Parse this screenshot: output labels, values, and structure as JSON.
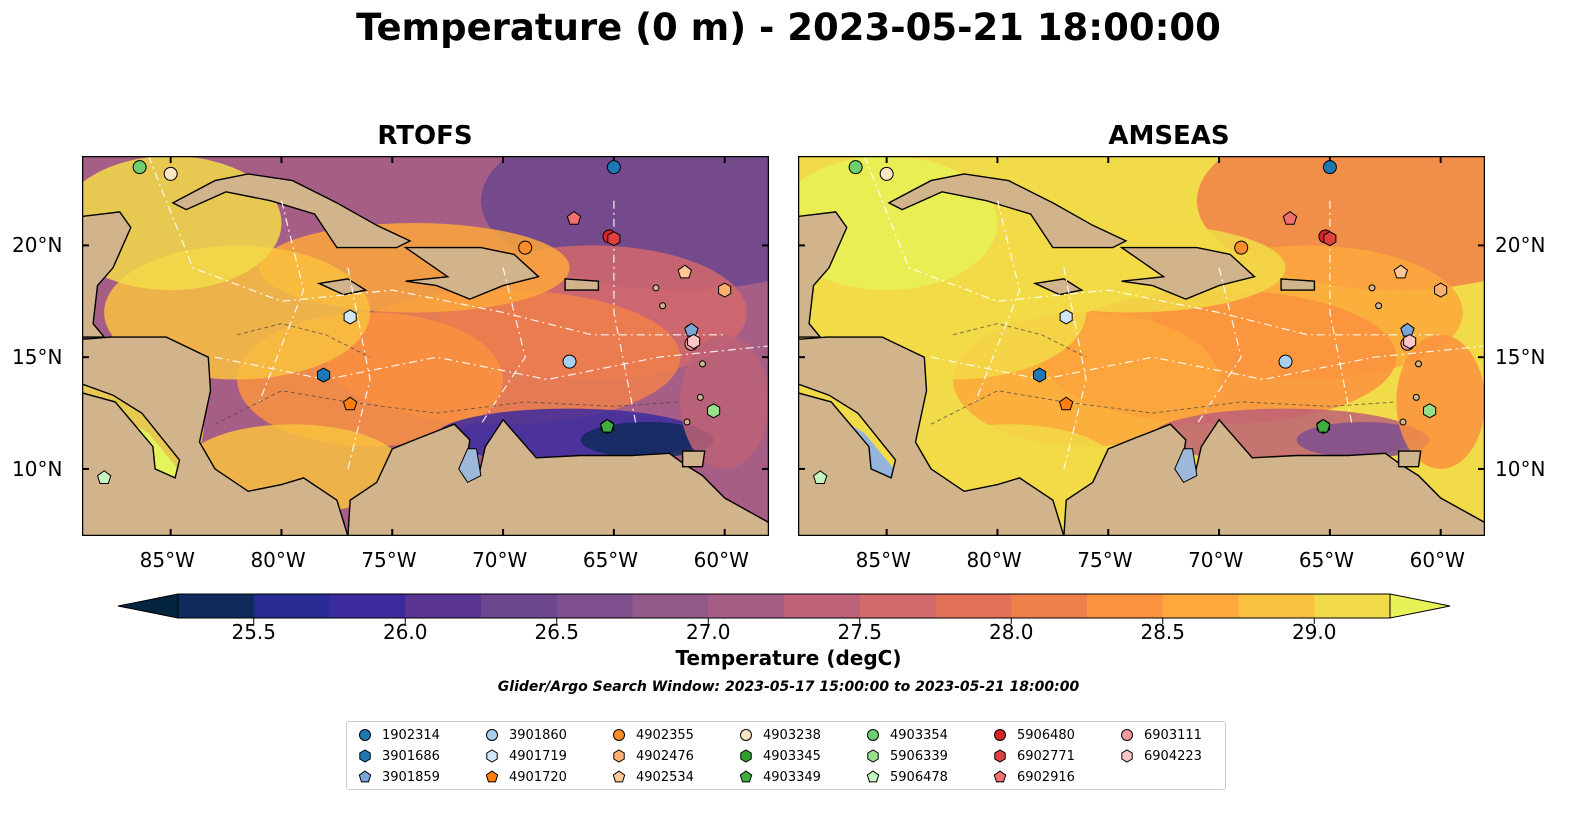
{
  "title": "Temperature (0 m) - 2023-05-21 18:00:00",
  "panels": [
    {
      "name": "RTOFS",
      "model": "rtofs"
    },
    {
      "name": "AMSEAS",
      "model": "amseas"
    }
  ],
  "axes": {
    "lon_range": [
      -89,
      -58
    ],
    "lat_range": [
      7,
      24
    ],
    "lon_ticks": [
      "85°W",
      "80°W",
      "75°W",
      "70°W",
      "65°W",
      "60°W"
    ],
    "lat_ticks": [
      "20°N",
      "15°N",
      "10°N"
    ],
    "lat_axis_left_panel": "left",
    "lat_axis_right_panel": "right"
  },
  "colorbar": {
    "colormap": "thermal",
    "min": 25.25,
    "max": 29.25,
    "step": 0.25,
    "extend": "both",
    "ticks": [
      "25.5",
      "26.0",
      "26.5",
      "27.0",
      "27.5",
      "28.0",
      "28.5",
      "29.0"
    ],
    "label": "Temperature (degC)"
  },
  "search_window": "Glider/Argo Search Window: 2023-05-17 15:00:00 to 2023-05-21 18:00:00",
  "colors": {
    "land": "#d2b48c",
    "coast": "#000000",
    "colormap_stops": [
      "#04233e",
      "#112a5c",
      "#282b93",
      "#3c2a9f",
      "#5a3593",
      "#6c478e",
      "#7d4f8d",
      "#915a8a",
      "#a65e86",
      "#bd6278",
      "#d2696b",
      "#e27059",
      "#f0804b",
      "#fa9240",
      "#fda73c",
      "#f9c13f",
      "#f2db48",
      "#e9f158"
    ]
  },
  "floats": [
    {
      "id": "1902314",
      "color": "#1f77b4",
      "marker": "circle",
      "lon": -65.0,
      "lat": 23.5
    },
    {
      "id": "3901686",
      "color": "#1f77b4",
      "marker": "hexagon",
      "lon": -78.1,
      "lat": 14.2
    },
    {
      "id": "3901859",
      "color": "#7ca5d8",
      "marker": "pentagon",
      "lon": -61.5,
      "lat": 16.2
    },
    {
      "id": "3901860",
      "color": "#a8cfee",
      "marker": "circle",
      "lon": -67.0,
      "lat": 14.8
    },
    {
      "id": "4901719",
      "color": "#cfe6f7",
      "marker": "hexagon",
      "lon": -76.9,
      "lat": 16.8
    },
    {
      "id": "4901720",
      "color": "#ff7f0e",
      "marker": "pentagon",
      "lon": -76.9,
      "lat": 12.9
    },
    {
      "id": "4902355",
      "color": "#ff8c2a",
      "marker": "circle",
      "lon": -69.0,
      "lat": 19.9
    },
    {
      "id": "4902476",
      "color": "#ffb070",
      "marker": "hexagon",
      "lon": -60.0,
      "lat": 18.0
    },
    {
      "id": "4902534",
      "color": "#ffc896",
      "marker": "pentagon",
      "lon": -61.8,
      "lat": 18.8
    },
    {
      "id": "4903238",
      "color": "#fde5c8",
      "marker": "circle",
      "lon": -85.0,
      "lat": 23.2
    },
    {
      "id": "4903345",
      "color": "#2ca02c",
      "marker": "hexagon",
      "lon": -65.3,
      "lat": 11.9
    },
    {
      "id": "4903349",
      "color": "#3fae3f",
      "marker": "pentagon",
      "lon": -65.3,
      "lat": 11.9
    },
    {
      "id": "4903354",
      "color": "#6fcf6f",
      "marker": "circle",
      "lon": -86.4,
      "lat": 23.5
    },
    {
      "id": "5906339",
      "color": "#98df8a",
      "marker": "hexagon",
      "lon": -60.5,
      "lat": 12.6
    },
    {
      "id": "5906478",
      "color": "#c7f5c1",
      "marker": "pentagon",
      "lon": -88.0,
      "lat": 9.6
    },
    {
      "id": "5906480",
      "color": "#d62728",
      "marker": "circle",
      "lon": -65.2,
      "lat": 20.4
    },
    {
      "id": "6902771",
      "color": "#e0413f",
      "marker": "hexagon",
      "lon": -65.0,
      "lat": 20.3
    },
    {
      "id": "6902916",
      "color": "#f07070",
      "marker": "pentagon",
      "lon": -66.8,
      "lat": 21.2
    },
    {
      "id": "6903111",
      "color": "#f49a9a",
      "marker": "circle",
      "lon": -61.5,
      "lat": 15.6
    },
    {
      "id": "6904223",
      "color": "#fcc6c6",
      "marker": "hexagon",
      "lon": -61.4,
      "lat": 15.7
    }
  ]
}
